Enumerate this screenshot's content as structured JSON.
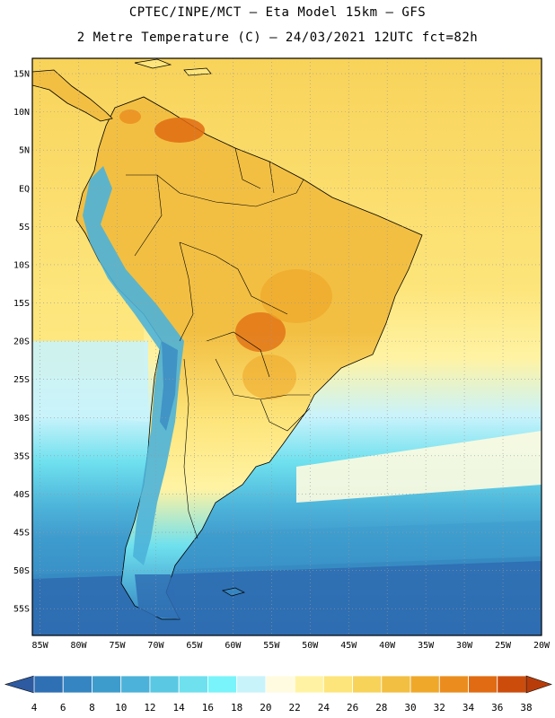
{
  "header": {
    "line1": "CPTEC/INPE/MCT –  Eta Model 15km – GFS",
    "line2": "2 Metre Temperature (C) – 24/03/2021 12UTC fct=82h"
  },
  "map": {
    "lat_labels": [
      "15N",
      "10N",
      "5N",
      "EQ",
      "5S",
      "10S",
      "15S",
      "20S",
      "25S",
      "30S",
      "35S",
      "40S",
      "45S",
      "50S",
      "55S"
    ],
    "lon_labels": [
      "85W",
      "80W",
      "75W",
      "70W",
      "65W",
      "60W",
      "55W",
      "50W",
      "45W",
      "40W",
      "35W",
      "30W",
      "25W",
      "20W"
    ],
    "lat_range": [
      17,
      -58.5
    ],
    "lon_range": [
      -86,
      -20
    ],
    "graticule": "dotted"
  },
  "colorbar": {
    "labels": [
      "4",
      "6",
      "8",
      "10",
      "12",
      "14",
      "16",
      "18",
      "20",
      "22",
      "24",
      "26",
      "28",
      "30",
      "32",
      "34",
      "36",
      "38"
    ],
    "colors": [
      "#2d5aa0",
      "#2f6fb3",
      "#3585c2",
      "#3e9ccd",
      "#4cb2d9",
      "#5ac8e2",
      "#6ee0ee",
      "#79f4fa",
      "#c9f3fb",
      "#fffbe0",
      "#fff3a3",
      "#fde57b",
      "#f8d35a",
      "#f2bf42",
      "#efa82a",
      "#ea8d1e",
      "#e06b12",
      "#cc4c0c",
      "#b83c0a"
    ]
  }
}
